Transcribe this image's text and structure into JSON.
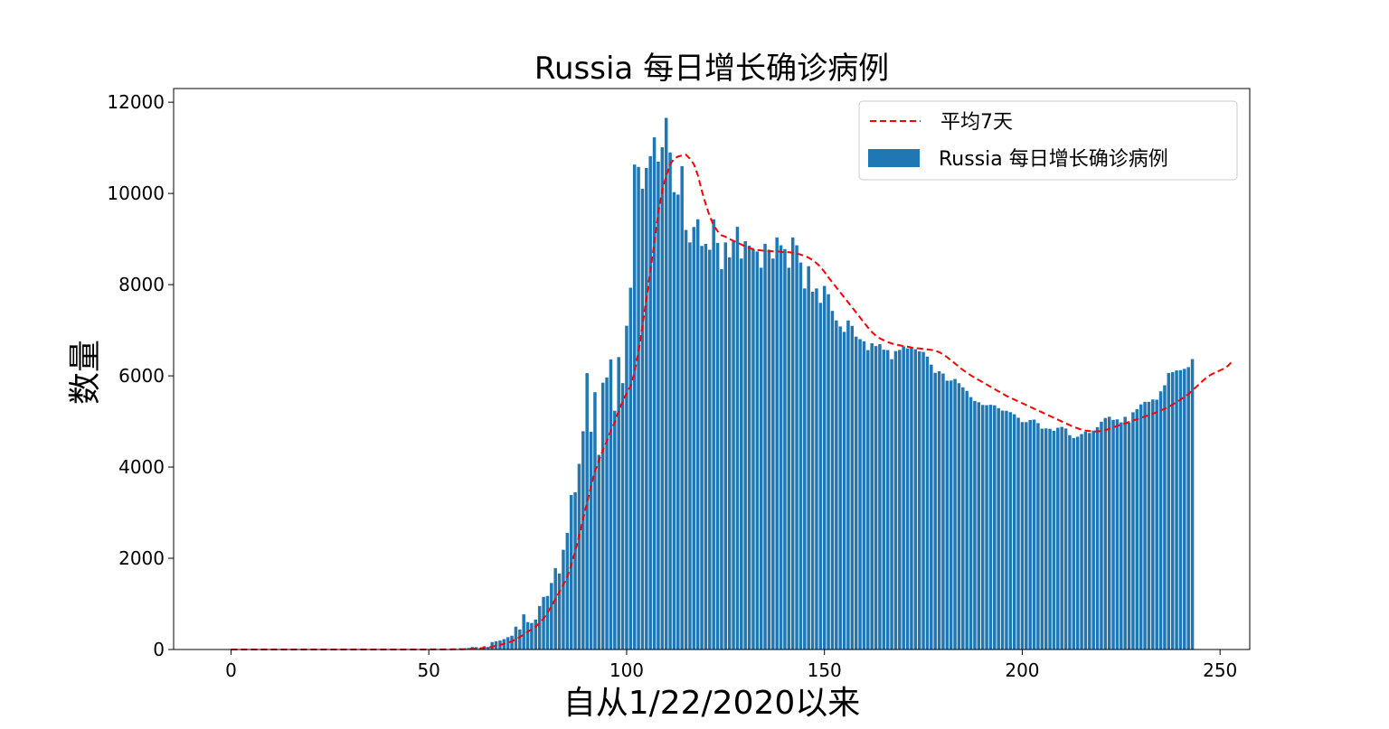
{
  "chart_data": {
    "type": "bar",
    "title": "Russia 每日增长确诊病例",
    "xlabel": "自从1/22/2020以来",
    "ylabel": "数量",
    "xlim": [
      -14.5,
      257.5
    ],
    "ylim": [
      0,
      12300
    ],
    "xticks": [
      0,
      50,
      100,
      150,
      200,
      250
    ],
    "yticks": [
      0,
      2000,
      4000,
      6000,
      8000,
      10000,
      12000
    ],
    "grid": false,
    "legend_position": "top-right",
    "bar_color": "#1f77b4",
    "line_color": "#ff0000",
    "series": [
      {
        "name": "Russia 每日增长确诊病例",
        "kind": "bar",
        "x_start": 0,
        "values": [
          0,
          0,
          0,
          0,
          0,
          0,
          0,
          0,
          0,
          2,
          0,
          0,
          0,
          0,
          0,
          0,
          0,
          0,
          0,
          0,
          0,
          0,
          0,
          0,
          0,
          0,
          0,
          0,
          0,
          0,
          0,
          0,
          0,
          0,
          0,
          0,
          0,
          0,
          0,
          0,
          1,
          0,
          0,
          1,
          0,
          0,
          0,
          2,
          0,
          3,
          3,
          3,
          3,
          0,
          6,
          0,
          14,
          10,
          27,
          6,
          33,
          54,
          52,
          28,
          71,
          57,
          163,
          182,
          196,
          228,
          270,
          302,
          501,
          440,
          771,
          601,
          582,
          658,
          954,
          1154,
          1175,
          1459,
          1786,
          1667,
          2186,
          2558,
          3388,
          3448,
          4070,
          4785,
          6060,
          4774,
          5642,
          4268,
          5849,
          5966,
          6361,
          5236,
          6411,
          5841,
          7099,
          7933,
          10633,
          10581,
          10102,
          10559,
          10817,
          11231,
          10699,
          11012,
          11656,
          10899,
          10028,
          9974,
          10598,
          9200,
          8926,
          9263,
          9434,
          8849,
          8894,
          8764,
          9434,
          8915,
          8338,
          8926,
          8599,
          8946,
          9268,
          8572,
          8952,
          8855,
          8779,
          8726,
          8371,
          8895,
          8764,
          8572,
          9035,
          8863,
          8779,
          8371,
          9035,
          8863,
          8485,
          7916,
          8404,
          7843,
          7916,
          7600,
          7972,
          7790,
          7425,
          7216,
          7083,
          6964,
          7215,
          7096,
          6860,
          6805,
          6758,
          6564,
          6715,
          6654,
          6694,
          6573,
          6566,
          6365,
          6544,
          6568,
          6648,
          6602,
          6614,
          6584,
          6538,
          6525,
          6423,
          6246,
          6066,
          6100,
          6051,
          5894,
          5896,
          5932,
          5839,
          5749,
          5670,
          5534,
          5450,
          5421,
          5363,
          5357,
          5366,
          5354,
          5292,
          5238,
          5234,
          5204,
          5158,
          5081,
          4986,
          4986,
          5032,
          5041,
          4964,
          4842,
          4847,
          4839,
          4796,
          4862,
          4881,
          4846,
          4699,
          4637,
          4666,
          4724,
          4778,
          4748,
          4801,
          4875,
          4994,
          5076,
          5104,
          5035,
          5046,
          4980,
          5102,
          4978,
          5201,
          5270,
          5374,
          5430,
          5430,
          5482,
          5477,
          5660,
          5793,
          6063,
          6081,
          6118,
          6125,
          6154,
          6191,
          6368
        ]
      },
      {
        "name": "平均7天",
        "kind": "line-dashed",
        "x_start": 0,
        "values": [
          0,
          0,
          0,
          0,
          0,
          0,
          0,
          0,
          0,
          0.3,
          0.3,
          0.3,
          0.3,
          0.3,
          0.3,
          0.3,
          0,
          0,
          0,
          0,
          0,
          0,
          0,
          0,
          0,
          0,
          0,
          0,
          0,
          0,
          0,
          0,
          0,
          0,
          0,
          0,
          0,
          0,
          0,
          0,
          0.1,
          0.1,
          0.3,
          0.3,
          0.3,
          0.3,
          0.3,
          0.4,
          0.4,
          0.9,
          1.3,
          1.9,
          2.4,
          2,
          3,
          3,
          4,
          5,
          6,
          8,
          11,
          15,
          20,
          25,
          36,
          45,
          60,
          84,
          101,
          124,
          150,
          180,
          225,
          270,
          330,
          390,
          440,
          500,
          580,
          680,
          810,
          950,
          1110,
          1260,
          1420,
          1600,
          1850,
          2150,
          2500,
          2850,
          3230,
          3580,
          3910,
          4150,
          4370,
          4570,
          4800,
          4980,
          5240,
          5440,
          5620,
          5780,
          6080,
          6530,
          7100,
          7670,
          8310,
          8920,
          9570,
          10060,
          10380,
          10640,
          10760,
          10810,
          10830,
          10850,
          10760,
          10640,
          10400,
          10060,
          9760,
          9500,
          9300,
          9170,
          9080,
          9050,
          9000,
          8960,
          8920,
          8880,
          8840,
          8800,
          8780,
          8760,
          8750,
          8740,
          8740,
          8730,
          8730,
          8720,
          8710,
          8710,
          8700,
          8680,
          8660,
          8630,
          8590,
          8540,
          8470,
          8390,
          8280,
          8160,
          8050,
          7940,
          7830,
          7720,
          7610,
          7500,
          7390,
          7280,
          7170,
          7060,
          6960,
          6880,
          6820,
          6780,
          6740,
          6710,
          6690,
          6670,
          6650,
          6640,
          6620,
          6610,
          6600,
          6590,
          6580,
          6570,
          6550,
          6520,
          6470,
          6410,
          6340,
          6270,
          6200,
          6130,
          6070,
          6010,
          5960,
          5910,
          5860,
          5810,
          5760,
          5710,
          5660,
          5610,
          5560,
          5520,
          5480,
          5440,
          5400,
          5360,
          5320,
          5280,
          5240,
          5200,
          5160,
          5120,
          5080,
          5040,
          5000,
          4960,
          4920,
          4880,
          4850,
          4820,
          4800,
          4790,
          4780,
          4780,
          4790,
          4810,
          4840,
          4870,
          4900,
          4930,
          4960,
          4990,
          5020,
          5050,
          5080,
          5110,
          5140,
          5170,
          5200,
          5240,
          5280,
          5320,
          5370,
          5420,
          5480,
          5540,
          5600,
          5680,
          5760,
          5840,
          5920,
          5990,
          6040,
          6080,
          6120,
          6160,
          6220,
          6310
        ]
      }
    ]
  }
}
